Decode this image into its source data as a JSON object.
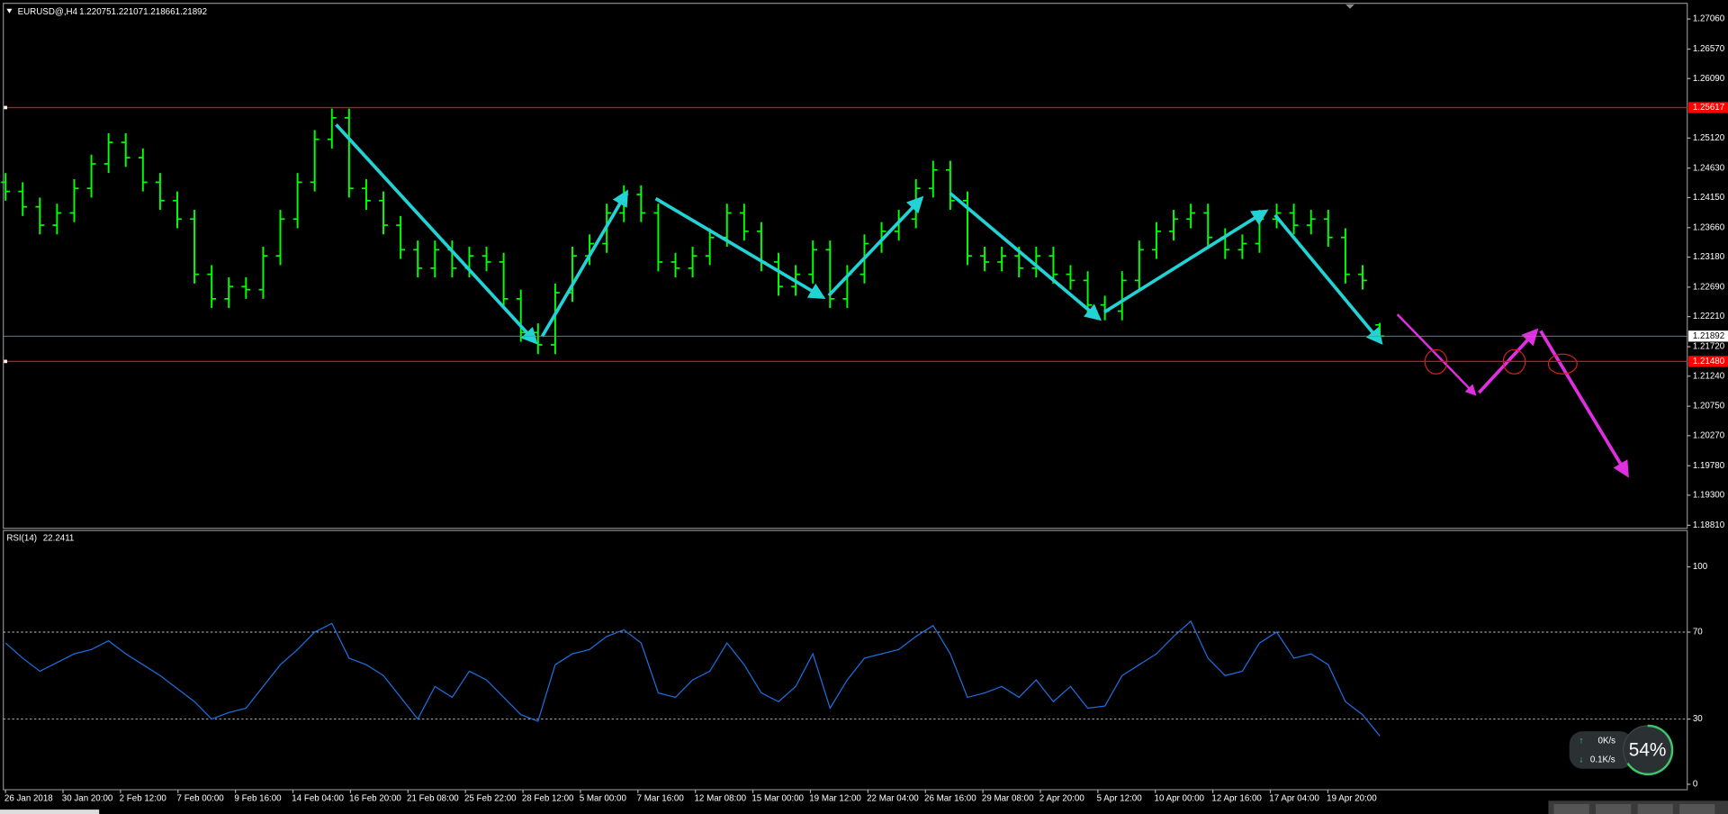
{
  "chart_data": [
    {
      "type": "ohlc",
      "title": "EURUSD@,H4",
      "color": "#00ff00",
      "grid": false,
      "ylim": [
        1.1876,
        1.2728
      ],
      "yticks": [
        {
          "value": 1.2706,
          "label": "1.27060"
        },
        {
          "value": 1.2657,
          "label": "1.26570"
        },
        {
          "value": 1.2609,
          "label": "1.26090"
        },
        {
          "value": 1.2512,
          "label": "1.25120"
        },
        {
          "value": 1.2463,
          "label": "1.24630"
        },
        {
          "value": 1.2415,
          "label": "1.24150"
        },
        {
          "value": 1.2366,
          "label": "1.23660"
        },
        {
          "value": 1.2318,
          "label": "1.23180"
        },
        {
          "value": 1.2269,
          "label": "1.22690"
        },
        {
          "value": 1.2221,
          "label": "1.22210"
        },
        {
          "value": 1.2172,
          "label": "1.21720"
        },
        {
          "value": 1.2124,
          "label": "1.21240"
        },
        {
          "value": 1.2075,
          "label": "1.20750"
        },
        {
          "value": 1.2027,
          "label": "1.20270"
        },
        {
          "value": 1.1978,
          "label": "1.19780"
        },
        {
          "value": 1.193,
          "label": "1.19300"
        },
        {
          "value": 1.1881,
          "label": "1.18810"
        }
      ],
      "levels": [
        {
          "value": 1.25617,
          "label": "1.25617",
          "color": "#ff0000"
        },
        {
          "value": 1.2148,
          "label": "1.21480",
          "color": "#ff0000"
        }
      ],
      "x_labels": [
        "26 Jan 2018",
        "30 Jan 20:00",
        "2 Feb 12:00",
        "7 Feb 00:00",
        "9 Feb 16:00",
        "14 Feb 04:00",
        "16 Feb 20:00",
        "21 Feb 08:00",
        "25 Feb 22:00",
        "28 Feb 12:00",
        "5 Mar 00:00",
        "7 Mar 16:00",
        "12 Mar 08:00",
        "15 Mar 00:00",
        "19 Mar 12:00",
        "22 Mar 04:00",
        "26 Mar 16:00",
        "29 Mar 08:00",
        "2 Apr 20:00",
        "5 Apr 12:00",
        "10 Apr 00:00",
        "12 Apr 16:00",
        "17 Apr 04:00",
        "19 Apr 20:00"
      ],
      "open": [
        1.244,
        1.2425,
        1.24,
        1.237,
        1.239,
        1.243,
        1.247,
        1.2505,
        1.248,
        1.244,
        1.241,
        1.238,
        1.229,
        1.225,
        1.227,
        1.2265,
        1.232,
        1.238,
        1.244,
        1.251,
        1.2545,
        1.243,
        1.241,
        1.237,
        1.233,
        1.23,
        1.233,
        1.23,
        1.232,
        1.231,
        1.225,
        1.2195,
        1.2175,
        1.226,
        1.232,
        1.234,
        1.239,
        1.242,
        1.239,
        1.231,
        1.23,
        1.232,
        1.235,
        1.239,
        1.236,
        1.231,
        1.227,
        1.229,
        1.233,
        1.225,
        1.229,
        1.234,
        1.236,
        1.238,
        1.243,
        1.246,
        1.241,
        1.232,
        1.231,
        1.232,
        1.23,
        1.232,
        1.229,
        1.228,
        1.224,
        1.223,
        1.228,
        1.233,
        1.236,
        1.238,
        1.239,
        1.235,
        1.233,
        1.234,
        1.238,
        1.239,
        1.237,
        1.238,
        1.235,
        1.229,
        1.22075
      ],
      "high": [
        1.2455,
        1.244,
        1.2415,
        1.2405,
        1.2445,
        1.2485,
        1.252,
        1.252,
        1.2495,
        1.2455,
        1.2425,
        1.2395,
        1.2305,
        1.2285,
        1.2285,
        1.2335,
        1.2395,
        1.2455,
        1.2525,
        1.256,
        1.256,
        1.2445,
        1.2425,
        1.2385,
        1.2345,
        1.2345,
        1.2345,
        1.2335,
        1.2335,
        1.2325,
        1.2265,
        1.221,
        1.2275,
        1.2335,
        1.2355,
        1.2405,
        1.2435,
        1.2435,
        1.2405,
        1.2325,
        1.2335,
        1.2365,
        1.2405,
        1.2405,
        1.2375,
        1.2325,
        1.2305,
        1.2345,
        1.2345,
        1.2305,
        1.2355,
        1.2375,
        1.2395,
        1.2445,
        1.2475,
        1.2475,
        1.2425,
        1.2335,
        1.2335,
        1.2335,
        1.2335,
        1.2335,
        1.2305,
        1.2295,
        1.2255,
        1.2295,
        1.2345,
        1.2375,
        1.2395,
        1.2405,
        1.2405,
        1.2365,
        1.2355,
        1.2395,
        1.2405,
        1.2405,
        1.2395,
        1.2395,
        1.2365,
        1.2305,
        1.22107
      ],
      "low": [
        1.241,
        1.2385,
        1.2355,
        1.2355,
        1.2375,
        1.2415,
        1.2455,
        1.2465,
        1.2425,
        1.2395,
        1.2365,
        1.2275,
        1.2235,
        1.2235,
        1.225,
        1.225,
        1.2305,
        1.2365,
        1.2425,
        1.2495,
        1.2415,
        1.2395,
        1.2355,
        1.2315,
        1.2285,
        1.2285,
        1.2285,
        1.2285,
        1.2295,
        1.2235,
        1.218,
        1.216,
        1.216,
        1.2245,
        1.2305,
        1.2325,
        1.2375,
        1.2375,
        1.2295,
        1.2285,
        1.2285,
        1.2305,
        1.2335,
        1.2345,
        1.2295,
        1.2255,
        1.2255,
        1.2275,
        1.2235,
        1.2235,
        1.2275,
        1.2325,
        1.2345,
        1.2365,
        1.2415,
        1.2395,
        1.2305,
        1.2295,
        1.2295,
        1.2285,
        1.2285,
        1.2275,
        1.2265,
        1.2225,
        1.2215,
        1.2215,
        1.2265,
        1.2315,
        1.2345,
        1.2365,
        1.2335,
        1.2315,
        1.2315,
        1.2325,
        1.2365,
        1.2355,
        1.2355,
        1.2335,
        1.2275,
        1.2265,
        1.21866
      ],
      "close": [
        1.2425,
        1.24,
        1.237,
        1.239,
        1.243,
        1.247,
        1.2505,
        1.248,
        1.244,
        1.241,
        1.238,
        1.229,
        1.225,
        1.227,
        1.2265,
        1.232,
        1.238,
        1.244,
        1.251,
        1.2545,
        1.243,
        1.241,
        1.237,
        1.233,
        1.23,
        1.233,
        1.23,
        1.232,
        1.231,
        1.225,
        1.2195,
        1.2175,
        1.226,
        1.232,
        1.234,
        1.239,
        1.242,
        1.239,
        1.231,
        1.23,
        1.232,
        1.235,
        1.239,
        1.236,
        1.231,
        1.227,
        1.229,
        1.233,
        1.225,
        1.229,
        1.234,
        1.236,
        1.238,
        1.243,
        1.246,
        1.241,
        1.232,
        1.231,
        1.232,
        1.23,
        1.232,
        1.229,
        1.228,
        1.224,
        1.223,
        1.228,
        1.233,
        1.236,
        1.238,
        1.239,
        1.235,
        1.233,
        1.234,
        1.238,
        1.239,
        1.237,
        1.238,
        1.235,
        1.229,
        1.228,
        1.21892
      ]
    },
    {
      "type": "line",
      "title": "RSI(14)",
      "color": "#1e6fe0",
      "ylim": [
        -2.5,
        116.2
      ],
      "yticks": [
        0,
        30,
        70,
        100
      ],
      "levels": [
        30,
        70
      ],
      "values": [
        65,
        58,
        52,
        56,
        60,
        62,
        66,
        60,
        55,
        50,
        44,
        38,
        30,
        33,
        35,
        45,
        55,
        62,
        70,
        74,
        58,
        55,
        50,
        40,
        30,
        45,
        40,
        52,
        48,
        40,
        32,
        29,
        55,
        60,
        62,
        68,
        71,
        65,
        42,
        40,
        48,
        52,
        65,
        55,
        42,
        38,
        45,
        60,
        35,
        48,
        58,
        60,
        62,
        68,
        73,
        60,
        40,
        42,
        45,
        40,
        48,
        38,
        45,
        35,
        36,
        50,
        55,
        60,
        68,
        75,
        58,
        50,
        52,
        65,
        70,
        58,
        60,
        55,
        38,
        32,
        22.2411
      ]
    }
  ],
  "widget": {
    "upload": "0K/s",
    "download": "0.1K/s",
    "percent": "54%"
  }
}
